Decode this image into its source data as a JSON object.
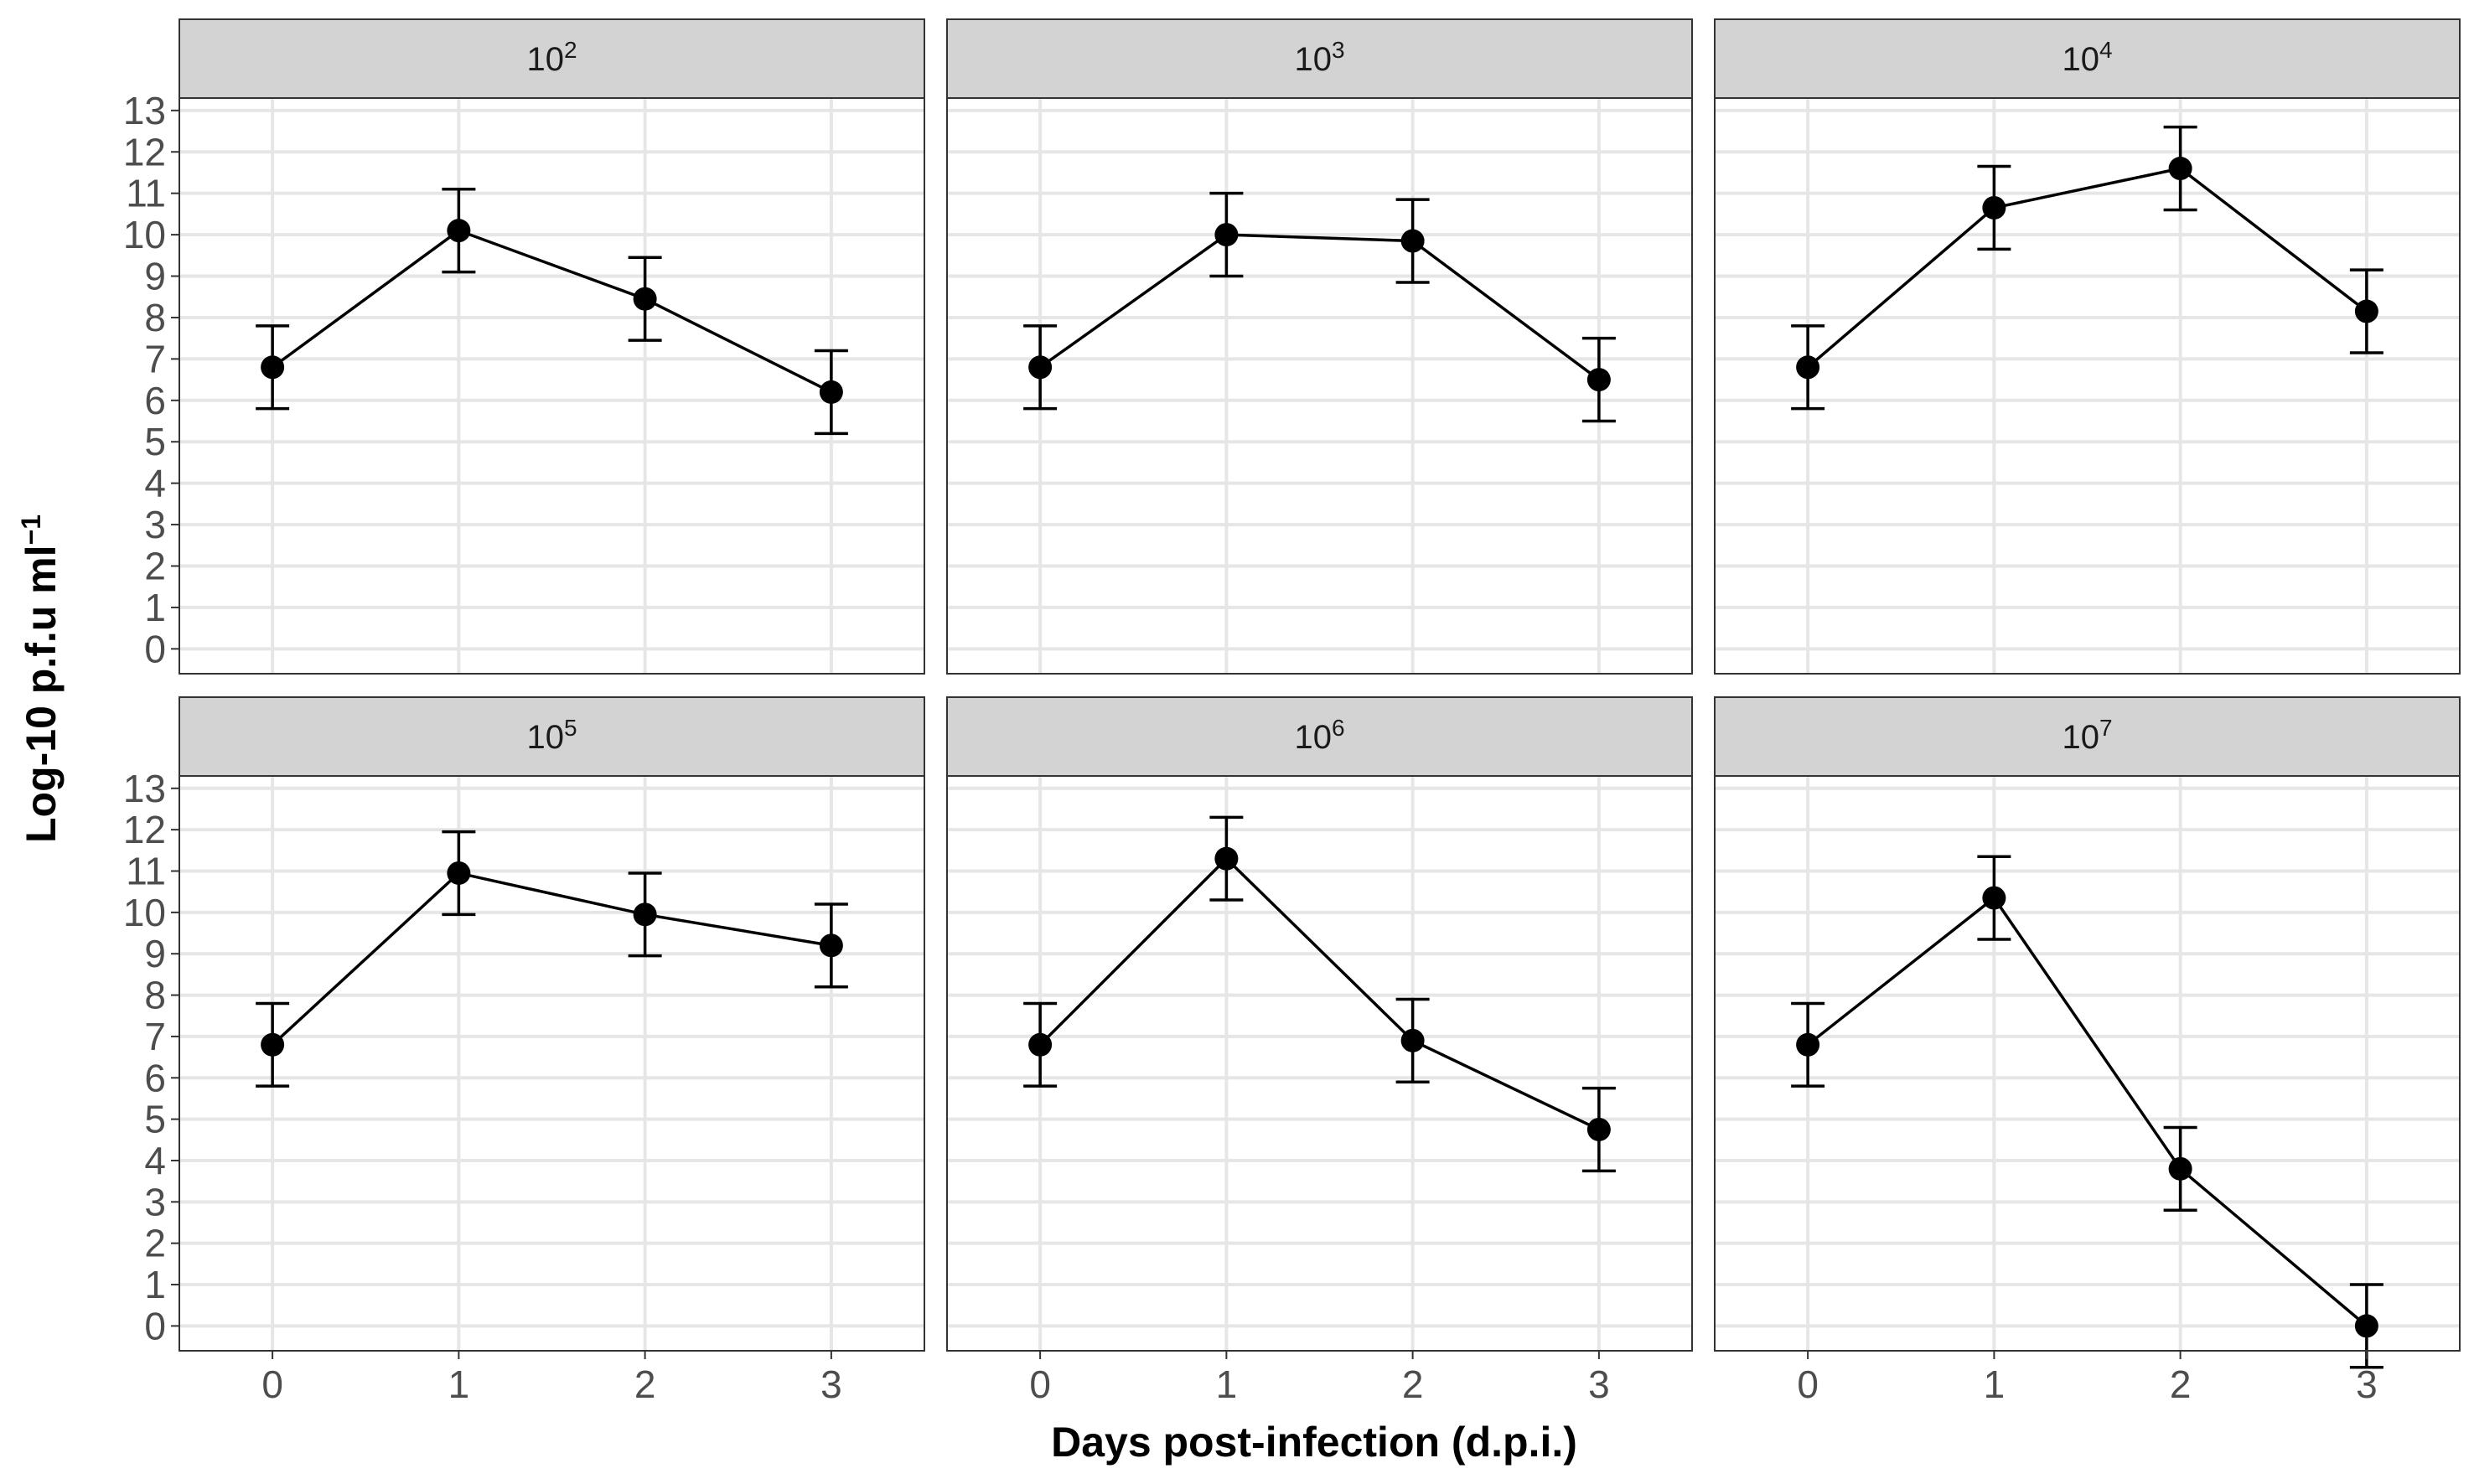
{
  "chart_data": {
    "type": "line",
    "facet_layout": "3 columns x 2 rows",
    "xlabel": "Days post-infection (d.p.i.)",
    "ylabel": {
      "base": "Log-10 p.f.u ml",
      "exponent": "−1"
    },
    "x_ticks": [
      0,
      1,
      2,
      3
    ],
    "y_ticks": [
      0,
      1,
      2,
      3,
      4,
      5,
      6,
      7,
      8,
      9,
      10,
      11,
      12,
      13
    ],
    "xlim": [
      -0.5,
      3.5
    ],
    "ylim": [
      -0.6,
      13.3
    ],
    "grid": true,
    "error_bar_halfwidth": 1.0,
    "panels": [
      {
        "strip": {
          "base": "10",
          "exp": "2"
        },
        "x": [
          0,
          1,
          2,
          3
        ],
        "y": [
          6.8,
          10.1,
          8.45,
          6.2
        ]
      },
      {
        "strip": {
          "base": "10",
          "exp": "3"
        },
        "x": [
          0,
          1,
          2,
          3
        ],
        "y": [
          6.8,
          10.0,
          9.85,
          6.5
        ]
      },
      {
        "strip": {
          "base": "10",
          "exp": "4"
        },
        "x": [
          0,
          1,
          2,
          3
        ],
        "y": [
          6.8,
          10.65,
          11.6,
          8.15
        ]
      },
      {
        "strip": {
          "base": "10",
          "exp": "5"
        },
        "x": [
          0,
          1,
          2,
          3
        ],
        "y": [
          6.8,
          10.95,
          9.95,
          9.2
        ]
      },
      {
        "strip": {
          "base": "10",
          "exp": "6"
        },
        "x": [
          0,
          1,
          2,
          3
        ],
        "y": [
          6.8,
          11.3,
          6.9,
          4.75
        ]
      },
      {
        "strip": {
          "base": "10",
          "exp": "7"
        },
        "x": [
          0,
          1,
          2,
          3
        ],
        "y": [
          6.8,
          10.35,
          3.8,
          0.0
        ]
      }
    ]
  }
}
